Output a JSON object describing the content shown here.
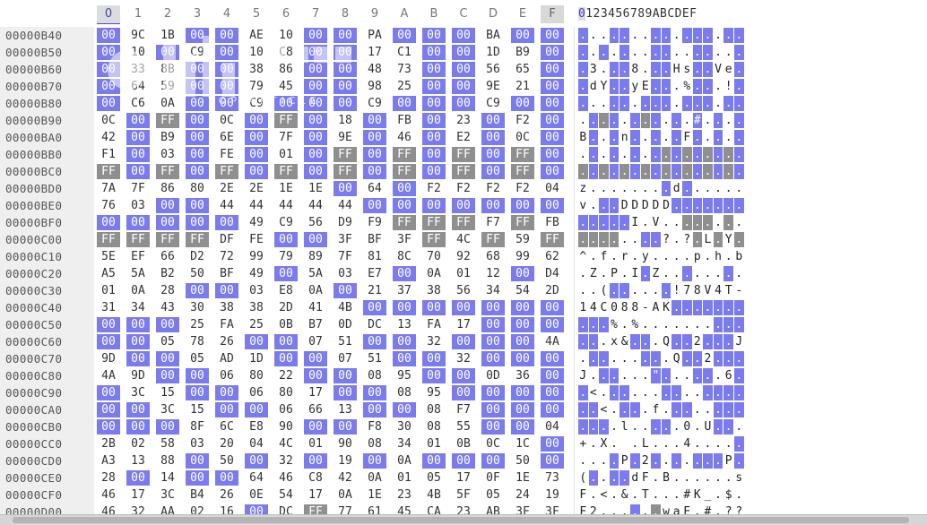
{
  "header": {
    "columns": [
      "0",
      "1",
      "2",
      "3",
      "4",
      "5",
      "6",
      "7",
      "8",
      "9",
      "A",
      "B",
      "C",
      "D",
      "E",
      "F"
    ],
    "active_column": 0,
    "ascii_header": "0123456789ABCDEF"
  },
  "colors": {
    "zero_byte": "#7b7bf0",
    "ff_byte": "#8f8f8f"
  },
  "watermark": {
    "text": "TOP ARTICLE"
  },
  "rows": [
    {
      "offset": "00000B40",
      "bytes": "00 9C 1B 00 00 AE 10 00 00 PA 00 00 00 BA 00 00",
      "ascii": "................"
    },
    {
      "offset": "00000B50",
      "bytes": "00 10 00 C9 00 10 C8 00 00 17 C1 00 00 1D B9 00",
      "ascii": "................"
    },
    {
      "offset": "00000B60",
      "bytes": "00 33 8B 00 00 38 86 00 00 48 73 00 00 56 65 00",
      "ascii": ".3...8...Hs..Ve."
    },
    {
      "offset": "00000B70",
      "bytes": "00 64 59 00 00 79 45 00 00 98 25 00 00 9E 21 00",
      "ascii": ".dY..yE...%...!."
    },
    {
      "offset": "00000B80",
      "bytes": "00 C6 0A 00 00 C9 00 00 00 C9 00 00 00 C9 00 00",
      "ascii": "................"
    },
    {
      "offset": "00000B90",
      "bytes": "0C 00 FF 00 0C 00 FF 00 18 00 FB 00 23 00 F2 00",
      "ascii": "...........#...."
    },
    {
      "offset": "00000BA0",
      "bytes": "42 00 B9 00 6E 00 7F 00 9E 00 46 00 E2 00 0C 00",
      "ascii": "B...n.....F....."
    },
    {
      "offset": "00000BB0",
      "bytes": "F1 00 03 00 FE 00 01 00 FF 00 FF 00 FF 00 FF 00",
      "ascii": "................"
    },
    {
      "offset": "00000BC0",
      "bytes": "FF 00 FF 00 FF 00 FF 00 FF 00 FF 00 FF 00 FF 00",
      "ascii": "................"
    },
    {
      "offset": "00000BD0",
      "bytes": "7A 7F 86 80 2E 2E 1E 1E 00 64 00 F2 F2 F2 F2 04",
      "ascii": "z........d......"
    },
    {
      "offset": "00000BE0",
      "bytes": "76 03 00 00 44 44 44 44 44 00 00 00 00 00 00 00",
      "ascii": "v...DDDDD......."
    },
    {
      "offset": "00000BF0",
      "bytes": "00 00 00 00 00 49 C9 56 D9 F9 FF FF FF F7 FF FB",
      "ascii": ".....I.V........"
    },
    {
      "offset": "00000C00",
      "bytes": "FF FF FF FF DF FE 00 00 3F BF 3F FF 4C FF 59 FF",
      "ascii": "........?.?.L.Y."
    },
    {
      "offset": "00000C10",
      "bytes": "5E EF 66 D2 72 99 79 89 7F 81 8C 70 92 68 99 62",
      "ascii": "^.f.r.y....p.h.b"
    },
    {
      "offset": "00000C20",
      "bytes": "A5 5A B2 50 BF 49 00 5A 03 E7 00 0A 01 12 00 D4",
      "ascii": ".Z.P.I.Z........"
    },
    {
      "offset": "00000C30",
      "bytes": "01 0A 28 00 00 03 E8 0A 00 21 37 38 56 34 54 2D",
      "ascii": "..(......!78V4T-"
    },
    {
      "offset": "00000C40",
      "bytes": "31 34 43 30 38 38 2D 41 4B 00 00 00 00 00 00 00",
      "ascii": "14C088-AK......."
    },
    {
      "offset": "00000C50",
      "bytes": "00 00 00 25 FA 25 0B B7 0D DC 13 FA 17 00 00 00",
      "ascii": "...%.%.........."
    },
    {
      "offset": "00000C60",
      "bytes": "00 00 05 78 26 00 00 07 51 00 00 32 00 00 00 4A",
      "ascii": "...x&...Q..2...J"
    },
    {
      "offset": "00000C70",
      "bytes": "9D 00 00 05 AD 1D 00 00 07 51 00 00 32 00 00 00",
      "ascii": ".........Q..2..."
    },
    {
      "offset": "00000C80",
      "bytes": "4A 9D 00 00 06 80 22 00 00 08 95 00 00 0D 36 00",
      "ascii": "J......\"......6."
    },
    {
      "offset": "00000C90",
      "bytes": "00 3C 15 00 00 06 80 17 00 00 08 95 00 00 00 00",
      "ascii": ".<.............."
    },
    {
      "offset": "00000CA0",
      "bytes": "00 00 3C 15 00 00 06 66 13 00 00 08 F7 00 00 00",
      "ascii": "..<....f........"
    },
    {
      "offset": "00000CB0",
      "bytes": "00 00 00 8F 6C E8 90 00 00 F8 30 08 55 00 00 04",
      "ascii": "....l.....0.U..."
    },
    {
      "offset": "00000CC0",
      "bytes": "2B 02 58 03 20 04 4C 01 90 08 34 01 0B 0C 1C 00",
      "ascii": "+.X. .L...4....."
    },
    {
      "offset": "00000CD0",
      "bytes": "A3 13 88 00 50 00 32 00 19 00 0A 00 00 00 50 00",
      "ascii": "....P.2.......P."
    },
    {
      "offset": "00000CE0",
      "bytes": "28 00 14 00 00 64 46 C8 42 0A 01 05 17 0F 1E 73",
      "ascii": "(....dF.B......s"
    },
    {
      "offset": "00000CF0",
      "bytes": "46 17 3C B4 26 0E 54 17 0A 1E 23 4B 5F 05 24 19",
      "ascii": "F.<.&.T...#K_.$."
    },
    {
      "offset": "00000D00",
      "bytes": "46 32 AA 02 16 00 DC FF 77 61 45 CA 23 AB 3F 3F",
      "ascii": "F2......waE.#.??"
    }
  ]
}
